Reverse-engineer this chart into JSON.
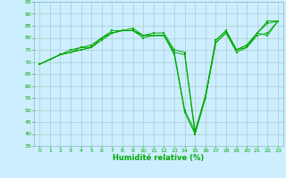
{
  "xlabel": "Humidité relative (%)",
  "bg_color": "#cceeff",
  "grid_color": "#aacccc",
  "line_color": "#00aa00",
  "xlim": [
    -0.5,
    23.5
  ],
  "ylim": [
    35,
    95
  ],
  "yticks": [
    35,
    40,
    45,
    50,
    55,
    60,
    65,
    70,
    75,
    80,
    85,
    90,
    95
  ],
  "xticks": [
    0,
    1,
    2,
    3,
    4,
    5,
    6,
    7,
    8,
    9,
    10,
    11,
    12,
    13,
    14,
    15,
    16,
    17,
    18,
    19,
    20,
    21,
    22,
    23
  ],
  "lines": [
    [
      69,
      71,
      73,
      74,
      76,
      76,
      80,
      82,
      83,
      83,
      80,
      81,
      81,
      74,
      73,
      40,
      55,
      79,
      83,
      75,
      77,
      82,
      87,
      87
    ],
    [
      69,
      71,
      73,
      75,
      76,
      77,
      80,
      83,
      83,
      84,
      81,
      82,
      82,
      75,
      74,
      41,
      56,
      79,
      83,
      75,
      77,
      82,
      81,
      87
    ],
    [
      69,
      71,
      73,
      74,
      75,
      76,
      80,
      82,
      83,
      83,
      81,
      81,
      81,
      74,
      50,
      41,
      55,
      78,
      82,
      75,
      76,
      82,
      86,
      87
    ],
    [
      69,
      71,
      73,
      74,
      75,
      76,
      79,
      82,
      83,
      83,
      81,
      81,
      81,
      73,
      49,
      40,
      55,
      78,
      82,
      74,
      76,
      81,
      82,
      87
    ]
  ]
}
